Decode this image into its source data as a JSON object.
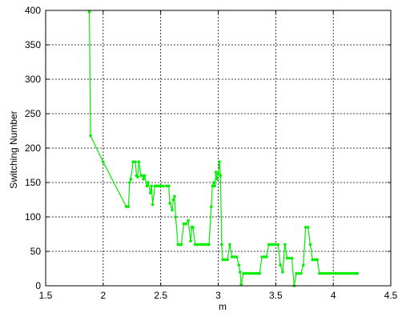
{
  "chart_data": {
    "type": "line",
    "xlabel": "m",
    "ylabel": "Switching Number",
    "xlim": [
      1.5,
      4.5
    ],
    "ylim": [
      0,
      400
    ],
    "xticks": [
      1.5,
      2,
      2.5,
      3,
      3.5,
      4,
      4.5
    ],
    "xtick_labels": [
      "1.5",
      "2",
      "2.5",
      "3",
      "3.5",
      "4",
      "4.5"
    ],
    "yticks": [
      0,
      50,
      100,
      150,
      200,
      250,
      300,
      350,
      400
    ],
    "ytick_labels": [
      "0",
      "50",
      "100",
      "150",
      "200",
      "250",
      "300",
      "350",
      "400"
    ],
    "grid": true,
    "grid_style": "dashed",
    "series": [
      {
        "color": "#00ee00",
        "marker": "dot",
        "x": [
          1.88,
          1.89,
          2.0,
          2.2,
          2.22,
          2.23,
          2.24,
          2.26,
          2.28,
          2.29,
          2.3,
          2.31,
          2.33,
          2.34,
          2.35,
          2.36,
          2.38,
          2.39,
          2.41,
          2.42,
          2.43,
          2.45,
          2.46,
          2.47,
          2.49,
          2.5,
          2.52,
          2.55,
          2.57,
          2.58,
          2.6,
          2.61,
          2.62,
          2.63,
          2.65,
          2.67,
          2.68,
          2.7,
          2.72,
          2.74,
          2.76,
          2.77,
          2.78,
          2.8,
          2.82,
          2.84,
          2.86,
          2.88,
          2.9,
          2.92,
          2.94,
          2.95,
          2.96,
          2.97,
          2.98,
          2.99,
          3.0,
          3.01,
          3.02,
          3.03,
          3.04,
          3.06,
          3.08,
          3.1,
          3.12,
          3.14,
          3.16,
          3.18,
          3.19,
          3.2,
          3.22,
          3.24,
          3.26,
          3.28,
          3.3,
          3.32,
          3.34,
          3.36,
          3.38,
          3.4,
          3.42,
          3.44,
          3.46,
          3.48,
          3.5,
          3.52,
          3.54,
          3.56,
          3.58,
          3.6,
          3.62,
          3.64,
          3.66,
          3.68,
          3.7,
          3.72,
          3.74,
          3.76,
          3.78,
          3.8,
          3.82,
          3.84,
          3.86,
          3.88,
          3.9,
          3.92,
          3.94,
          3.96,
          3.98,
          4.0,
          4.02,
          4.04,
          4.06,
          4.08,
          4.1,
          4.12,
          4.14,
          4.16,
          4.18,
          4.2,
          4.21
        ],
        "y": [
          398,
          218,
          180,
          115,
          115,
          150,
          155,
          180,
          180,
          160,
          158,
          180,
          160,
          160,
          155,
          160,
          145,
          150,
          135,
          145,
          118,
          145,
          145,
          145,
          145,
          145,
          145,
          145,
          145,
          120,
          110,
          125,
          130,
          100,
          60,
          60,
          60,
          90,
          90,
          95,
          65,
          85,
          85,
          60,
          60,
          60,
          60,
          60,
          60,
          60,
          115,
          145,
          150,
          145,
          165,
          155,
          163,
          180,
          160,
          60,
          38,
          38,
          38,
          60,
          42,
          42,
          42,
          30,
          20,
          2,
          18,
          18,
          18,
          18,
          18,
          18,
          18,
          18,
          42,
          42,
          42,
          60,
          60,
          60,
          60,
          60,
          30,
          20,
          60,
          40,
          40,
          40,
          0,
          18,
          18,
          18,
          30,
          85,
          85,
          60,
          38,
          38,
          38,
          18,
          18,
          18,
          18,
          18,
          18,
          18,
          18,
          18,
          18,
          18,
          18,
          18,
          18,
          18,
          18,
          18,
          18
        ]
      }
    ]
  }
}
